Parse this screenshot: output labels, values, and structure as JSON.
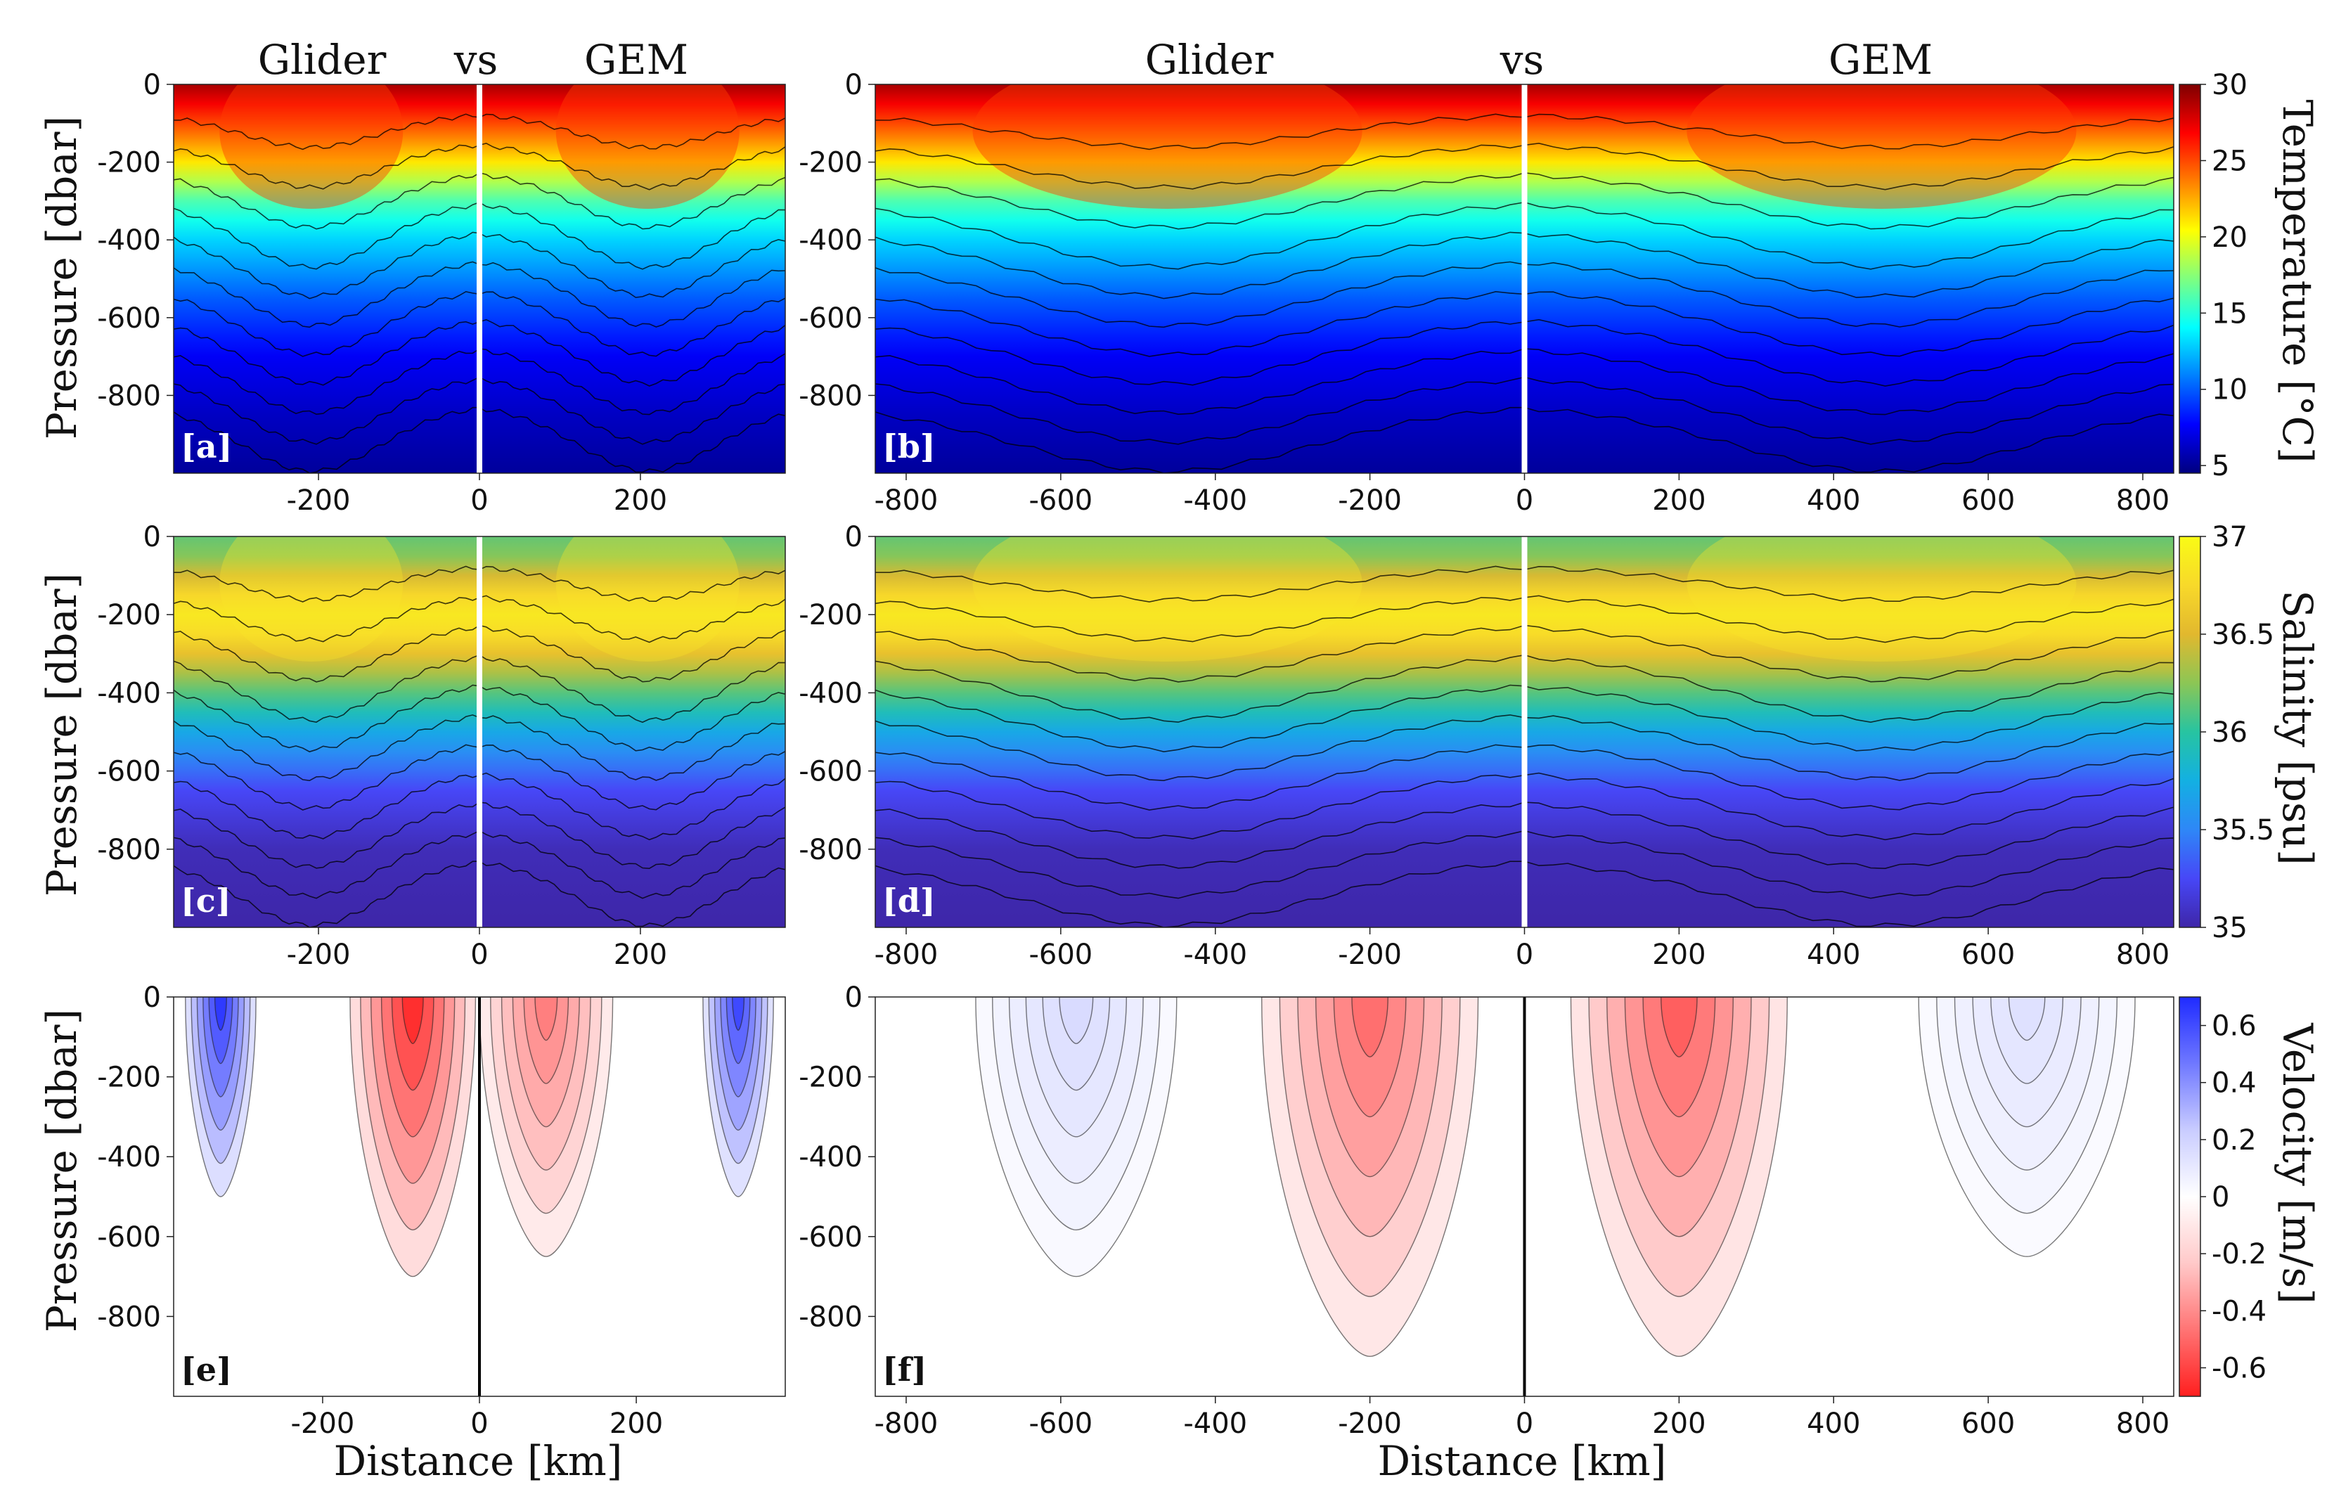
{
  "figure": {
    "header_left": [
      "Glider",
      "vs",
      "GEM"
    ],
    "header_right": [
      "Glider",
      "vs",
      "GEM"
    ],
    "xlabel": "Distance [km]",
    "ylabel": "Pressure [dbar]"
  },
  "chart_data": [
    {
      "id": "a",
      "label": "[a]",
      "type": "heatmap",
      "variable": "temperature",
      "xlim": [
        -380,
        380
      ],
      "ylim": [
        -1000,
        0
      ],
      "xticks": [
        "-200",
        "0",
        "200"
      ],
      "xtick_values": [
        -200,
        0,
        200
      ],
      "yticks": [
        "0",
        "-200",
        "-400",
        "-600",
        "-800"
      ],
      "ytick_values": [
        0,
        -200,
        -400,
        -600,
        -800
      ],
      "split_at": 0,
      "left_source": "Glider",
      "right_source": "GEM",
      "show_xticks": true
    },
    {
      "id": "b",
      "label": "[b]",
      "type": "heatmap",
      "variable": "temperature",
      "xlim": [
        -840,
        840
      ],
      "ylim": [
        -1000,
        0
      ],
      "xticks": [
        "-800",
        "-600",
        "-400",
        "-200",
        "0",
        "200",
        "400",
        "600",
        "800"
      ],
      "xtick_values": [
        -800,
        -600,
        -400,
        -200,
        0,
        200,
        400,
        600,
        800
      ],
      "yticks": [
        "0",
        "-200",
        "-400",
        "-600",
        "-800"
      ],
      "ytick_values": [
        0,
        -200,
        -400,
        -600,
        -800
      ],
      "split_at": 0,
      "left_source": "Glider",
      "right_source": "GEM",
      "show_xticks": true
    },
    {
      "id": "c",
      "label": "[c]",
      "type": "heatmap",
      "variable": "salinity",
      "xlim": [
        -380,
        380
      ],
      "ylim": [
        -1000,
        0
      ],
      "xticks": [
        "-200",
        "0",
        "200"
      ],
      "xtick_values": [
        -200,
        0,
        200
      ],
      "yticks": [
        "0",
        "-200",
        "-400",
        "-600",
        "-800"
      ],
      "ytick_values": [
        0,
        -200,
        -400,
        -600,
        -800
      ],
      "split_at": 0,
      "show_xticks": true
    },
    {
      "id": "d",
      "label": "[d]",
      "type": "heatmap",
      "variable": "salinity",
      "xlim": [
        -840,
        840
      ],
      "ylim": [
        -1000,
        0
      ],
      "xticks": [
        "-800",
        "-600",
        "-400",
        "-200",
        "0",
        "200",
        "400",
        "600",
        "800"
      ],
      "xtick_values": [
        -800,
        -600,
        -400,
        -200,
        0,
        200,
        400,
        600,
        800
      ],
      "yticks": [
        "0",
        "-200",
        "-400",
        "-600",
        "-800"
      ],
      "ytick_values": [
        0,
        -200,
        -400,
        -600,
        -800
      ],
      "split_at": 0,
      "show_xticks": true
    },
    {
      "id": "e",
      "label": "[e]",
      "type": "heatmap",
      "variable": "velocity",
      "xlim": [
        -390,
        390
      ],
      "ylim": [
        -1000,
        0
      ],
      "xticks": [
        "-200",
        "0",
        "200"
      ],
      "xtick_values": [
        -200,
        0,
        200
      ],
      "yticks": [
        "0",
        "-200",
        "-400",
        "-600",
        "-800"
      ],
      "ytick_values": [
        0,
        -200,
        -400,
        -600,
        -800
      ],
      "split_at": 0,
      "show_xticks": true,
      "jets": [
        {
          "x": -330,
          "v": 0.65,
          "width": 45,
          "depth": 500
        },
        {
          "x": -85,
          "v": -0.65,
          "width": 80,
          "depth": 700
        },
        {
          "x": 85,
          "v": -0.4,
          "width": 85,
          "depth": 650
        },
        {
          "x": 330,
          "v": 0.6,
          "width": 45,
          "depth": 500
        }
      ]
    },
    {
      "id": "f",
      "label": "[f]",
      "type": "heatmap",
      "variable": "velocity",
      "xlim": [
        -840,
        840
      ],
      "ylim": [
        -1000,
        0
      ],
      "xticks": [
        "-800",
        "-600",
        "-400",
        "-200",
        "0",
        "200",
        "400",
        "600",
        "800"
      ],
      "xtick_values": [
        -800,
        -600,
        -400,
        -200,
        0,
        200,
        400,
        600,
        800
      ],
      "yticks": [
        "0",
        "-200",
        "-400",
        "-600",
        "-800"
      ],
      "ytick_values": [
        0,
        -200,
        -400,
        -600,
        -800
      ],
      "split_at": 0,
      "show_xticks": true,
      "jets": [
        {
          "x": -580,
          "v": 0.12,
          "width": 130,
          "depth": 700
        },
        {
          "x": -200,
          "v": -0.45,
          "width": 140,
          "depth": 900
        },
        {
          "x": 200,
          "v": -0.5,
          "width": 140,
          "depth": 900
        },
        {
          "x": 650,
          "v": 0.1,
          "width": 140,
          "depth": 650
        }
      ]
    }
  ],
  "colorbars": [
    {
      "row": 0,
      "title": "Temperature [°C]",
      "min": 4.5,
      "max": 30,
      "ticks": [
        "5",
        "10",
        "15",
        "20",
        "25",
        "30"
      ],
      "tick_values": [
        5,
        10,
        15,
        20,
        25,
        30
      ],
      "colormap": "jet"
    },
    {
      "row": 1,
      "title": "Salinity [psu]",
      "min": 35,
      "max": 37,
      "ticks": [
        "35",
        "35.5",
        "36",
        "36.5",
        "37"
      ],
      "tick_values": [
        35,
        35.5,
        36,
        36.5,
        37
      ],
      "colormap": "parula"
    },
    {
      "row": 2,
      "title": "Velocity [m/s]",
      "min": -0.7,
      "max": 0.7,
      "ticks": [
        "0.6",
        "0.4",
        "0.2",
        "0",
        "-0.2",
        "-0.4",
        "-0.6"
      ],
      "tick_values": [
        0.6,
        0.4,
        0.2,
        0,
        -0.2,
        -0.4,
        -0.6
      ],
      "colormap": "blue-white-red"
    }
  ],
  "colors": {
    "divider_temp_sal": "#ffffff",
    "divider_velocity": "#000000",
    "label_light": "#ffffff",
    "label_dark": "#111111"
  }
}
